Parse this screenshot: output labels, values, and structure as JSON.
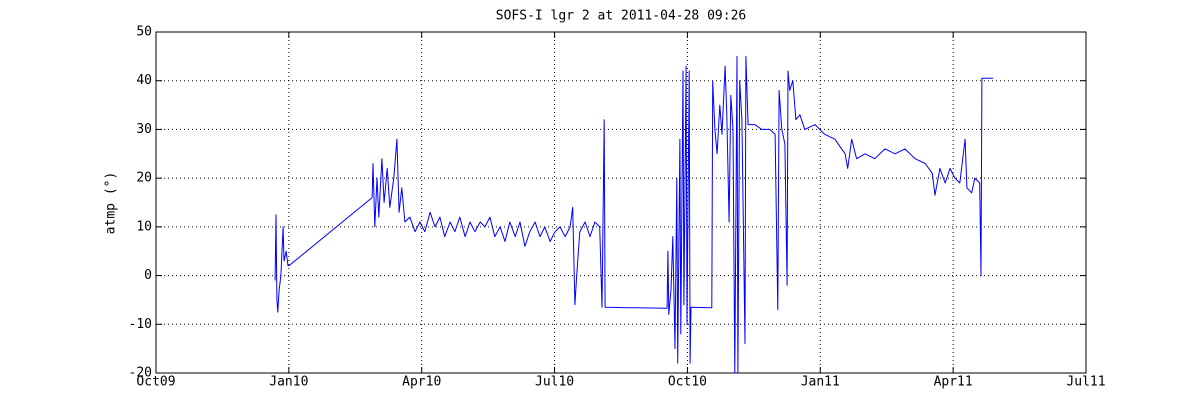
{
  "chart_data": {
    "type": "line",
    "title": "SOFS-I lgr 2 at 2011-04-28 09:26",
    "y_label": "atmp (°)",
    "xlim": [
      0,
      21
    ],
    "xticks": [
      {
        "value": 0,
        "label": "Oct09"
      },
      {
        "value": 3,
        "label": "Jan10"
      },
      {
        "value": 6,
        "label": "Apr10"
      },
      {
        "value": 9,
        "label": "Jul10"
      },
      {
        "value": 12,
        "label": "Oct10"
      },
      {
        "value": 15,
        "label": "Jan11"
      },
      {
        "value": 18,
        "label": "Apr11"
      },
      {
        "value": 21,
        "label": "Jul11"
      }
    ],
    "ylim": [
      -20,
      50
    ],
    "yticks": [
      -20,
      -10,
      0,
      10,
      20,
      30,
      40,
      50
    ],
    "grid": true,
    "series": [
      {
        "color": "#0000ff",
        "x": [
          2.69,
          2.71,
          2.73,
          2.75,
          2.78,
          2.82,
          2.87,
          2.89,
          2.94,
          2.98,
          3.0,
          4.88,
          4.9,
          4.94,
          4.99,
          5.03,
          5.1,
          5.15,
          5.22,
          5.28,
          5.37,
          5.44,
          5.49,
          5.55,
          5.62,
          5.73,
          5.85,
          5.96,
          6.07,
          6.19,
          6.3,
          6.41,
          6.52,
          6.64,
          6.75,
          6.86,
          6.98,
          7.09,
          7.2,
          7.32,
          7.43,
          7.54,
          7.65,
          7.77,
          7.88,
          7.99,
          8.11,
          8.22,
          8.33,
          8.44,
          8.56,
          8.67,
          8.78,
          8.9,
          9.01,
          9.12,
          9.24,
          9.35,
          9.41,
          9.46,
          9.5,
          9.57,
          9.69,
          9.8,
          9.91,
          10.02,
          10.07,
          10.12,
          10.14,
          10.7,
          11.54,
          11.56,
          11.58,
          11.63,
          11.67,
          11.72,
          11.76,
          11.78,
          11.83,
          11.85,
          11.9,
          11.92,
          11.97,
          11.99,
          12.04,
          12.06,
          12.08,
          12.55,
          12.57,
          12.62,
          12.67,
          12.73,
          12.78,
          12.85,
          12.89,
          12.94,
          12.98,
          13.03,
          13.07,
          13.12,
          13.14,
          13.18,
          13.23,
          13.3,
          13.32,
          13.37,
          13.52,
          13.68,
          13.86,
          13.98,
          14.04,
          14.07,
          14.13,
          14.2,
          14.25,
          14.27,
          14.31,
          14.38,
          14.45,
          14.54,
          14.65,
          14.88,
          15.1,
          15.33,
          15.56,
          15.62,
          15.71,
          15.82,
          16.01,
          16.23,
          16.46,
          16.69,
          16.91,
          17.14,
          17.37,
          17.53,
          17.59,
          17.7,
          17.82,
          17.93,
          18.04,
          18.15,
          18.27,
          18.31,
          18.42,
          18.49,
          18.6,
          18.63,
          18.65,
          18.9
        ],
        "values": [
          -1,
          12.5,
          -5,
          -7.5,
          -3,
          0,
          10,
          3,
          5,
          2,
          2,
          16,
          23,
          10,
          20,
          12,
          24,
          15,
          22,
          14,
          20,
          28,
          13,
          18,
          11,
          12,
          9,
          11,
          9,
          13,
          10,
          12,
          8,
          11,
          9,
          12,
          8,
          11,
          9,
          11,
          10,
          12,
          8,
          10,
          7,
          11,
          8,
          11,
          6,
          9,
          11,
          8,
          10,
          7,
          9,
          10,
          8,
          10,
          14,
          -6,
          0,
          9,
          11,
          8,
          11,
          10,
          -6.5,
          32,
          -6.5,
          -6.6,
          -6.7,
          5,
          -8,
          -3,
          8,
          -15,
          20,
          -18,
          28,
          -12,
          42,
          -6,
          43,
          -10,
          42,
          -18,
          -6.5,
          -6.6,
          40,
          30,
          25,
          35,
          29,
          43,
          33,
          11,
          37,
          30,
          -20,
          45,
          -20,
          40,
          32,
          -14,
          45,
          31,
          31,
          30,
          30,
          29,
          -7,
          38,
          30,
          27,
          -2,
          42,
          38,
          40,
          32,
          33,
          30,
          31,
          29,
          28,
          25,
          22,
          28,
          24,
          25,
          24,
          26,
          25,
          26,
          24,
          23,
          21,
          16.5,
          22,
          19,
          22,
          20,
          19,
          28,
          18,
          17,
          20,
          19,
          0,
          40.5,
          40.5
        ]
      }
    ]
  }
}
